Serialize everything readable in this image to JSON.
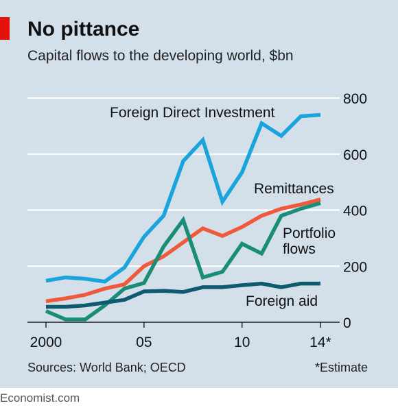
{
  "header": {
    "title": "No pittance",
    "subtitle": "Capital flows to the developing world, $bn"
  },
  "footer": {
    "source": "Sources: World Bank; OECD",
    "note": "*Estimate",
    "brand": "Economist.com"
  },
  "chart_data": {
    "type": "line",
    "title": "No pittance",
    "subtitle": "Capital flows to the developing world, $bn",
    "x": [
      2000,
      2001,
      2002,
      2003,
      2004,
      2005,
      2006,
      2007,
      2008,
      2009,
      2010,
      2011,
      2012,
      2013,
      2014
    ],
    "x_tick_values": [
      2000,
      2005,
      2010,
      2014
    ],
    "x_tick_labels": [
      "2000",
      "05",
      "10",
      "14*"
    ],
    "ylim": [
      0,
      800
    ],
    "y_ticks": [
      0,
      200,
      400,
      600,
      800
    ],
    "y_tick_labels": [
      "0",
      "200",
      "400",
      "600",
      "800"
    ],
    "grid": true,
    "y_axis_side": "right",
    "series": [
      {
        "name": "Foreign Direct Investment",
        "color": "#1aa4dc",
        "values": [
          148,
          160,
          155,
          145,
          195,
          305,
          380,
          575,
          650,
          430,
          535,
          710,
          665,
          735,
          740
        ]
      },
      {
        "name": "Remittances",
        "color": "#ef5a3c",
        "values": [
          75,
          85,
          98,
          120,
          135,
          200,
          235,
          285,
          335,
          308,
          340,
          380,
          405,
          420,
          438
        ]
      },
      {
        "name": "Portfolio flows",
        "color": "#1b8c78",
        "values": [
          40,
          10,
          10,
          60,
          120,
          140,
          270,
          365,
          160,
          180,
          280,
          245,
          380,
          405,
          425
        ]
      },
      {
        "name": "Foreign aid",
        "color": "#0e5a6e",
        "values": [
          55,
          55,
          60,
          70,
          80,
          110,
          112,
          108,
          125,
          125,
          132,
          138,
          125,
          138,
          138
        ]
      }
    ],
    "labels": {
      "fdi": "Foreign Direct Investment",
      "remittances": "Remittances",
      "portfolio_line1": "Portfolio",
      "portfolio_line2": "flows",
      "aid": "Foreign aid"
    }
  }
}
